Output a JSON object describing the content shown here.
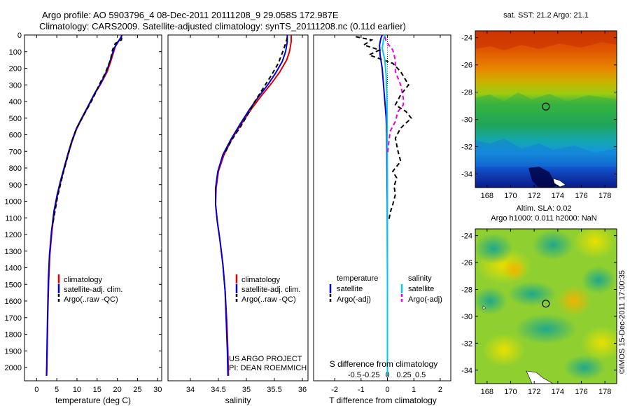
{
  "header": {
    "line1": "Argo profile: AO 5903796_4 08-Dec-2011 20111208_9 29.058S 172.987E",
    "line2": "Climatology: CARS2009. Satellite-adjusted climatology: synTS_20111208.nc (0.11d earlier)"
  },
  "colors": {
    "climatology": "#e00000",
    "satellite": "#0000dd",
    "argo": "#000000",
    "salinity_satellite": "#00c8e6",
    "salinity_argo": "#e600e6"
  },
  "chart_data": [
    {
      "type": "line",
      "xlabel": "temperature (deg C)",
      "ylabel": "",
      "xlim": [
        -3,
        31
      ],
      "ylim": [
        2080,
        0
      ],
      "xticks": [
        0,
        5,
        10,
        15,
        20,
        25,
        30
      ],
      "yticks": [
        0,
        100,
        200,
        300,
        400,
        500,
        600,
        700,
        800,
        900,
        1000,
        1100,
        1200,
        1300,
        1400,
        1500,
        1600,
        1700,
        1800,
        1900,
        2000
      ],
      "legend": [
        "climatology",
        "satellite-adj. clim.",
        "Argo(..raw -QC)"
      ],
      "series": [
        {
          "name": "climatology",
          "color": "#e00000",
          "style": "solid",
          "points": [
            [
              21.2,
              0
            ],
            [
              21,
              10
            ],
            [
              20.5,
              30
            ],
            [
              19.5,
              70
            ],
            [
              18.5,
              150
            ],
            [
              17.5,
              220
            ],
            [
              16,
              290
            ],
            [
              14.5,
              350
            ],
            [
              13,
              420
            ],
            [
              11.5,
              490
            ],
            [
              10,
              560
            ],
            [
              8.8,
              640
            ],
            [
              7.8,
              720
            ],
            [
              6.9,
              800
            ],
            [
              6,
              880
            ],
            [
              5.2,
              960
            ],
            [
              4.4,
              1060
            ],
            [
              3.8,
              1180
            ],
            [
              3.3,
              1320
            ],
            [
              3,
              1480
            ],
            [
              2.8,
              1660
            ],
            [
              2.65,
              1840
            ],
            [
              2.55,
              2000
            ],
            [
              2.5,
              2050
            ]
          ]
        },
        {
          "name": "satellite-adj. clim.",
          "color": "#0000dd",
          "style": "solid",
          "points": [
            [
              21.1,
              0
            ],
            [
              20.9,
              15
            ],
            [
              20.2,
              40
            ],
            [
              19.2,
              80
            ],
            [
              18.3,
              150
            ],
            [
              17.3,
              220
            ],
            [
              15.9,
              290
            ],
            [
              14.4,
              350
            ],
            [
              12.9,
              420
            ],
            [
              11.4,
              490
            ],
            [
              9.9,
              560
            ],
            [
              8.7,
              640
            ],
            [
              7.7,
              720
            ],
            [
              6.8,
              800
            ],
            [
              5.9,
              880
            ],
            [
              5.1,
              960
            ],
            [
              4.3,
              1060
            ],
            [
              3.7,
              1180
            ],
            [
              3.2,
              1320
            ],
            [
              2.9,
              1480
            ],
            [
              2.75,
              1660
            ],
            [
              2.6,
              1840
            ],
            [
              2.5,
              2000
            ],
            [
              2.45,
              2050
            ]
          ]
        },
        {
          "name": "Argo(..raw -QC)",
          "color": "#000000",
          "style": "dashed",
          "points": [
            [
              21.1,
              15
            ],
            [
              21,
              30
            ],
            [
              19.5,
              50
            ],
            [
              18.8,
              90
            ],
            [
              18.3,
              150
            ],
            [
              17,
              230
            ],
            [
              15.5,
              300
            ],
            [
              14,
              380
            ],
            [
              12.4,
              450
            ],
            [
              10.8,
              520
            ],
            [
              9.6,
              580
            ],
            [
              8.6,
              650
            ],
            [
              7.7,
              730
            ],
            [
              6.8,
              810
            ],
            [
              6,
              890
            ],
            [
              5.2,
              970
            ],
            [
              4.5,
              1070
            ],
            [
              3.9,
              1150
            ]
          ]
        }
      ]
    },
    {
      "type": "line",
      "xlabel": "salinity",
      "ylabel": "",
      "xlim": [
        33.6,
        36.1
      ],
      "ylim": [
        2080,
        0
      ],
      "xticks": [
        34,
        34.5,
        35,
        35.5,
        36
      ],
      "tick_labels": [
        "34",
        "34.5",
        "35",
        "35.5",
        "36"
      ],
      "legend": [
        "climatology",
        "satellite-adj. clim.",
        "Argo(..raw -QC)"
      ],
      "annotation": [
        "US ARGO PROJECT",
        "PI: DEAN ROEMMICH"
      ],
      "series": [
        {
          "name": "climatology",
          "color": "#e00000",
          "style": "solid",
          "points": [
            [
              35.8,
              0
            ],
            [
              35.8,
              40
            ],
            [
              35.77,
              100
            ],
            [
              35.72,
              150
            ],
            [
              35.6,
              220
            ],
            [
              35.45,
              290
            ],
            [
              35.28,
              360
            ],
            [
              35.1,
              440
            ],
            [
              34.92,
              530
            ],
            [
              34.75,
              620
            ],
            [
              34.6,
              720
            ],
            [
              34.5,
              820
            ],
            [
              34.46,
              920
            ],
            [
              34.45,
              1020
            ],
            [
              34.48,
              1120
            ],
            [
              34.53,
              1240
            ],
            [
              34.58,
              1380
            ],
            [
              34.62,
              1540
            ],
            [
              34.65,
              1720
            ],
            [
              34.67,
              1900
            ],
            [
              34.68,
              2050
            ]
          ]
        },
        {
          "name": "satellite-adj. clim.",
          "color": "#0000dd",
          "style": "solid",
          "points": [
            [
              35.73,
              0
            ],
            [
              35.73,
              40
            ],
            [
              35.7,
              100
            ],
            [
              35.64,
              160
            ],
            [
              35.52,
              230
            ],
            [
              35.38,
              300
            ],
            [
              35.22,
              370
            ],
            [
              35.05,
              450
            ],
            [
              34.88,
              540
            ],
            [
              34.72,
              630
            ],
            [
              34.58,
              720
            ],
            [
              34.49,
              820
            ],
            [
              34.45,
              920
            ],
            [
              34.45,
              1020
            ],
            [
              34.48,
              1120
            ],
            [
              34.53,
              1240
            ],
            [
              34.58,
              1380
            ],
            [
              34.62,
              1540
            ],
            [
              34.64,
              1720
            ],
            [
              34.66,
              1900
            ],
            [
              34.67,
              2050
            ]
          ]
        },
        {
          "name": "Argo(..raw -QC)",
          "color": "#000000",
          "style": "dashed",
          "points": [
            [
              35.73,
              15
            ],
            [
              35.71,
              40
            ],
            [
              35.65,
              100
            ],
            [
              35.57,
              170
            ],
            [
              35.45,
              240
            ],
            [
              35.3,
              320
            ],
            [
              35.15,
              400
            ],
            [
              35.02,
              480
            ],
            [
              34.9,
              550
            ],
            [
              34.74,
              630
            ],
            [
              34.6,
              720
            ]
          ]
        }
      ]
    },
    {
      "type": "line",
      "xlabel": "T difference from climatology",
      "ylabel": "",
      "top_label": "S difference from climatology",
      "xlim": [
        -2.8,
        2.4
      ],
      "ylim": [
        2080,
        0
      ],
      "xticks": [
        -2,
        -1,
        0,
        1,
        2
      ],
      "tick_labels": [
        "-2",
        "-1",
        "0",
        "1",
        "2"
      ],
      "s_tick_labels": [
        "-0.5",
        "-0.25",
        "0",
        "0.25",
        "0.5"
      ],
      "legend_groups": {
        "temperature": [
          "temperature",
          "satellite",
          "Argo(-adj)"
        ],
        "salinity": [
          "salinity",
          "satellite",
          "Argo(-adj)"
        ]
      },
      "series": [
        {
          "name": "temperature satellite",
          "color": "#0000dd",
          "style": "solid",
          "points": [
            [
              -0.2,
              0
            ],
            [
              -0.25,
              20
            ],
            [
              -0.3,
              60
            ],
            [
              -0.28,
              120
            ],
            [
              -0.2,
              200
            ],
            [
              -0.15,
              300
            ],
            [
              -0.1,
              400
            ],
            [
              -0.05,
              500
            ],
            [
              -0.03,
              600
            ],
            [
              -0.02,
              800
            ],
            [
              -0.01,
              1000
            ],
            [
              0,
              1500
            ],
            [
              0,
              2050
            ]
          ]
        },
        {
          "name": "temperature Argo(-adj)",
          "color": "#000000",
          "style": "dashed",
          "points": [
            [
              -1.2,
              10
            ],
            [
              -0.6,
              30
            ],
            [
              -0.9,
              60
            ],
            [
              -0.3,
              90
            ],
            [
              -0.7,
              120
            ],
            [
              0.2,
              170
            ],
            [
              0.5,
              220
            ],
            [
              0.8,
              300
            ],
            [
              0.5,
              360
            ],
            [
              0.3,
              420
            ],
            [
              0.7,
              460
            ],
            [
              0.9,
              500
            ],
            [
              0.5,
              560
            ],
            [
              0.3,
              620
            ],
            [
              0.4,
              700
            ],
            [
              0.5,
              760
            ],
            [
              0.2,
              820
            ],
            [
              0.35,
              860
            ],
            [
              0.25,
              910
            ],
            [
              0.3,
              960
            ],
            [
              0.2,
              1020
            ],
            [
              0.1,
              1070
            ],
            [
              0.05,
              1120
            ]
          ]
        },
        {
          "name": "salinity satellite",
          "color": "#00c8e6",
          "style": "solid",
          "points": [
            [
              -0.1,
              0
            ],
            [
              -0.15,
              30
            ],
            [
              -0.2,
              80
            ],
            [
              -0.1,
              150
            ],
            [
              -0.05,
              250
            ],
            [
              -0.02,
              400
            ],
            [
              -0.01,
              600
            ],
            [
              0,
              900
            ],
            [
              0,
              2050
            ]
          ]
        },
        {
          "name": "salinity Argo(-adj)",
          "color": "#e600e6",
          "style": "dashed",
          "points": [
            [
              -0.1,
              10
            ],
            [
              -0.05,
              40
            ],
            [
              0.2,
              90
            ],
            [
              0.3,
              150
            ],
            [
              0.3,
              220
            ],
            [
              0.5,
              300
            ],
            [
              0.6,
              380
            ],
            [
              0.6,
              420
            ],
            [
              0.4,
              460
            ],
            [
              0.3,
              520
            ],
            [
              0.1,
              580
            ],
            [
              0.05,
              650
            ],
            [
              0.0,
              720
            ]
          ]
        }
      ]
    },
    {
      "type": "heatmap",
      "title": "sat. SST: 21.2 Argo: 21.1",
      "xlim": [
        167,
        179
      ],
      "ylim": [
        -35,
        -23.5
      ],
      "xticks": [
        168,
        170,
        172,
        174,
        176,
        178
      ],
      "yticks": [
        -24,
        -26,
        -28,
        -30,
        -32,
        -34
      ],
      "marker": {
        "lon": 172.987,
        "lat": -29.058
      }
    },
    {
      "type": "heatmap",
      "title": "Altim. SLA: 0.02",
      "subtitle": "Argo h1000: 0.011 h2000: NaN",
      "xlim": [
        167,
        179
      ],
      "ylim": [
        -35,
        -23.5
      ],
      "xticks": [
        168,
        170,
        172,
        174,
        176,
        178
      ],
      "yticks": [
        -24,
        -26,
        -28,
        -30,
        -32,
        -34
      ],
      "marker": {
        "lon": 172.987,
        "lat": -29.058
      }
    }
  ],
  "side_note": "©IMOS 15-Dec-2011 17:00:35"
}
